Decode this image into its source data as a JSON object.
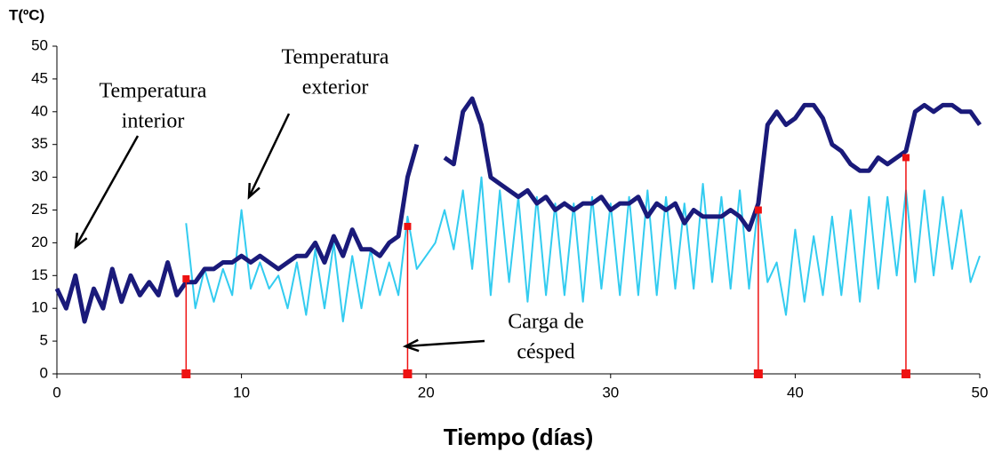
{
  "chart_data": {
    "type": "line",
    "y_label": "T(ºC)",
    "x_label": "Tiempo (días)",
    "x": [
      0,
      0.5,
      1,
      1.5,
      2,
      2.5,
      3,
      3.5,
      4,
      4.5,
      5,
      5.5,
      6,
      6.5,
      7,
      7.5,
      8,
      8.5,
      9,
      9.5,
      10,
      10.5,
      11,
      11.5,
      12,
      12.5,
      13,
      13.5,
      14,
      14.5,
      15,
      15.5,
      16,
      16.5,
      17,
      17.5,
      18,
      18.5,
      19,
      19.5,
      20,
      20.5,
      21,
      21.5,
      22,
      22.5,
      23,
      23.5,
      24,
      24.5,
      25,
      25.5,
      26,
      26.5,
      27,
      27.5,
      28,
      28.5,
      29,
      29.5,
      30,
      30.5,
      31,
      31.5,
      32,
      32.5,
      33,
      33.5,
      34,
      34.5,
      35,
      35.5,
      36,
      36.5,
      37,
      37.5,
      38,
      38.5,
      39,
      39.5,
      40,
      40.5,
      41,
      41.5,
      42,
      42.5,
      43,
      43.5,
      44,
      44.5,
      45,
      45.5,
      46,
      46.5,
      47,
      47.5,
      48,
      48.5,
      49,
      49.5,
      50
    ],
    "series": [
      {
        "name": "Temperatura exterior",
        "color": "#33ccf0",
        "values": [
          null,
          null,
          null,
          null,
          null,
          null,
          null,
          null,
          null,
          null,
          null,
          null,
          null,
          null,
          23,
          10,
          16,
          11,
          16,
          12,
          25,
          13,
          17,
          13,
          15,
          10,
          17,
          9,
          19,
          10,
          20,
          8,
          18,
          10,
          19,
          12,
          17,
          12,
          24,
          16,
          18,
          20,
          25,
          19,
          28,
          16,
          30,
          12,
          28,
          14,
          27,
          11,
          27,
          12,
          26,
          12,
          26,
          11,
          27,
          13,
          26,
          12,
          27,
          12,
          28,
          12,
          27,
          13,
          26,
          13,
          29,
          14,
          27,
          13,
          28,
          13,
          26,
          14,
          17,
          9,
          22,
          11,
          21,
          12,
          24,
          12,
          25,
          11,
          27,
          13,
          27,
          15,
          28,
          14,
          28,
          15,
          27,
          16,
          25,
          14,
          18
        ]
      },
      {
        "name": "Temperatura interior",
        "color": "#1a1a7a",
        "values": [
          13,
          10,
          15,
          8,
          13,
          10,
          16,
          11,
          15,
          12,
          14,
          12,
          17,
          12,
          14,
          14,
          16,
          16,
          17,
          17,
          18,
          17,
          18,
          17,
          16,
          17,
          18,
          18,
          20,
          17,
          21,
          18,
          22,
          19,
          19,
          18,
          20,
          21,
          30,
          35,
          null,
          null,
          33,
          32,
          40,
          42,
          38,
          30,
          29,
          28,
          27,
          28,
          26,
          27,
          25,
          26,
          25,
          26,
          26,
          27,
          25,
          26,
          26,
          27,
          24,
          26,
          25,
          26,
          23,
          25,
          24,
          24,
          24,
          25,
          24,
          22,
          26,
          38,
          40,
          38,
          39,
          41,
          41,
          39,
          35,
          34,
          32,
          31,
          31,
          33,
          32,
          33,
          34,
          40,
          41,
          40,
          41,
          41,
          40,
          40,
          38
        ]
      }
    ],
    "events": {
      "label": "Carga de césped",
      "color": "#ee1111",
      "x": [
        7,
        19,
        38,
        46
      ],
      "values": [
        14.5,
        22.5,
        25,
        33
      ]
    },
    "annotations": [
      {
        "lines": [
          "Temperatura",
          "interior"
        ]
      },
      {
        "lines": [
          "Temperatura",
          "exterior"
        ]
      },
      {
        "lines": [
          "Carga de",
          "césped"
        ]
      }
    ],
    "xlim": [
      0,
      50
    ],
    "xticks": [
      0,
      10,
      20,
      30,
      40,
      50
    ],
    "ylim": [
      0,
      50
    ],
    "yticks": [
      0,
      5,
      10,
      15,
      20,
      25,
      30,
      35,
      40,
      45,
      50
    ]
  }
}
